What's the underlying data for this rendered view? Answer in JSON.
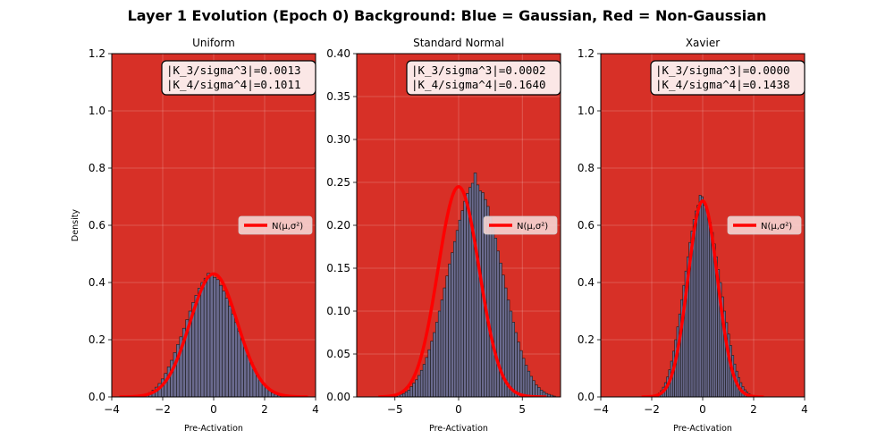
{
  "figure": {
    "suptitle": "Layer 1 Evolution (Epoch 0) Background: Blue = Gaussian, Red = Non-Gaussian",
    "background_color": "#d73027",
    "hist_color": "#6a6a8e",
    "fit_color": "#ff0000",
    "legend_label": "N(μ,σ²)",
    "xlabel": "Pre-Activation",
    "ylabel": "Density"
  },
  "chart_data": [
    {
      "type": "bar",
      "title": "Uniform",
      "xlabel": "Pre-Activation",
      "ylabel": "Density",
      "xlim": [
        -4,
        4
      ],
      "ylim": [
        0,
        1.2
      ],
      "xticks": [
        -4,
        -2,
        0,
        2,
        4
      ],
      "yticks": [
        "0.0",
        "0.2",
        "0.4",
        "0.6",
        "0.8",
        "1.0",
        "1.2"
      ],
      "grid": true,
      "legend": {
        "label": "N(μ,σ²)",
        "position": "center right"
      },
      "stats_box": [
        "|K_3/sigma^3|=0.0013",
        "|K_4/sigma^4|=0.1011"
      ],
      "fit": {
        "mu": 0.0,
        "sigma": 0.93,
        "peak": 0.43,
        "x_range": [
          -3.7,
          3.7
        ]
      },
      "hist": {
        "bin_start": -2.9,
        "bin_width": 0.12,
        "densities": [
          0.003,
          0.006,
          0.01,
          0.016,
          0.024,
          0.034,
          0.047,
          0.063,
          0.082,
          0.105,
          0.128,
          0.155,
          0.183,
          0.21,
          0.24,
          0.27,
          0.3,
          0.33,
          0.355,
          0.38,
          0.4,
          0.415,
          0.432,
          0.43,
          0.418,
          0.41,
          0.39,
          0.37,
          0.345,
          0.318,
          0.29,
          0.26,
          0.23,
          0.2,
          0.172,
          0.145,
          0.12,
          0.098,
          0.078,
          0.06,
          0.045,
          0.032,
          0.022,
          0.014,
          0.009,
          0.005,
          0.003,
          0.002
        ]
      },
      "status": "Non-Gaussian"
    },
    {
      "type": "bar",
      "title": "Standard Normal",
      "xlabel": "Pre-Activation",
      "ylabel": "",
      "xlim": [
        -8,
        8
      ],
      "ylim": [
        0,
        0.4
      ],
      "xticks": [
        -5,
        0,
        5
      ],
      "yticks": [
        "0.00",
        "0.05",
        "0.10",
        "0.15",
        "0.20",
        "0.25",
        "0.30",
        "0.35",
        "0.40"
      ],
      "grid": true,
      "legend": {
        "label": "N(μ,σ²)",
        "position": "center right"
      },
      "stats_box": [
        "|K_3/sigma^3|=0.0002",
        "|K_4/sigma^4|=0.1640"
      ],
      "fit": {
        "mu": 0.0,
        "sigma": 1.62,
        "peak": 0.245,
        "x_range": [
          -6.3,
          6.9
        ]
      },
      "hist": {
        "bin_start": -5.0,
        "bin_width": 0.2,
        "densities": [
          0.001,
          0.002,
          0.003,
          0.004,
          0.006,
          0.008,
          0.012,
          0.016,
          0.02,
          0.025,
          0.031,
          0.038,
          0.046,
          0.055,
          0.065,
          0.075,
          0.087,
          0.1,
          0.113,
          0.127,
          0.141,
          0.155,
          0.168,
          0.181,
          0.194,
          0.206,
          0.217,
          0.228,
          0.237,
          0.244,
          0.249,
          0.261,
          0.247,
          0.24,
          0.238,
          0.23,
          0.222,
          0.21,
          0.198,
          0.185,
          0.17,
          0.156,
          0.142,
          0.127,
          0.113,
          0.1,
          0.087,
          0.075,
          0.064,
          0.054,
          0.045,
          0.037,
          0.03,
          0.024,
          0.019,
          0.014,
          0.011,
          0.008,
          0.006,
          0.004,
          0.003,
          0.002,
          0.001
        ]
      },
      "status": "Non-Gaussian"
    },
    {
      "type": "bar",
      "title": "Xavier",
      "xlabel": "Pre-Activation",
      "ylabel": "",
      "xlim": [
        -4,
        4
      ],
      "ylim": [
        0,
        1.2
      ],
      "xticks": [
        -4,
        -2,
        0,
        2,
        4
      ],
      "yticks": [
        "0.0",
        "0.2",
        "0.4",
        "0.6",
        "0.8",
        "1.0",
        "1.2"
      ],
      "grid": true,
      "legend": {
        "label": "N(μ,σ²)",
        "position": "center right"
      },
      "stats_box": [
        "|K_3/sigma^3|=0.0000",
        "|K_4/sigma^4|=0.1438"
      ],
      "fit": {
        "mu": 0.0,
        "sigma": 0.58,
        "peak": 0.685,
        "x_range": [
          -2.4,
          2.4
        ]
      },
      "hist": {
        "bin_start": -1.9,
        "bin_width": 0.08,
        "densities": [
          0.004,
          0.008,
          0.014,
          0.022,
          0.034,
          0.05,
          0.07,
          0.095,
          0.125,
          0.16,
          0.2,
          0.245,
          0.29,
          0.34,
          0.39,
          0.44,
          0.49,
          0.54,
          0.58,
          0.62,
          0.65,
          0.67,
          0.705,
          0.7,
          0.67,
          0.66,
          0.64,
          0.61,
          0.575,
          0.535,
          0.49,
          0.445,
          0.4,
          0.35,
          0.3,
          0.26,
          0.22,
          0.18,
          0.145,
          0.115,
          0.09,
          0.068,
          0.05,
          0.036,
          0.025,
          0.017,
          0.011,
          0.007,
          0.004
        ]
      },
      "status": "Non-Gaussian"
    }
  ]
}
